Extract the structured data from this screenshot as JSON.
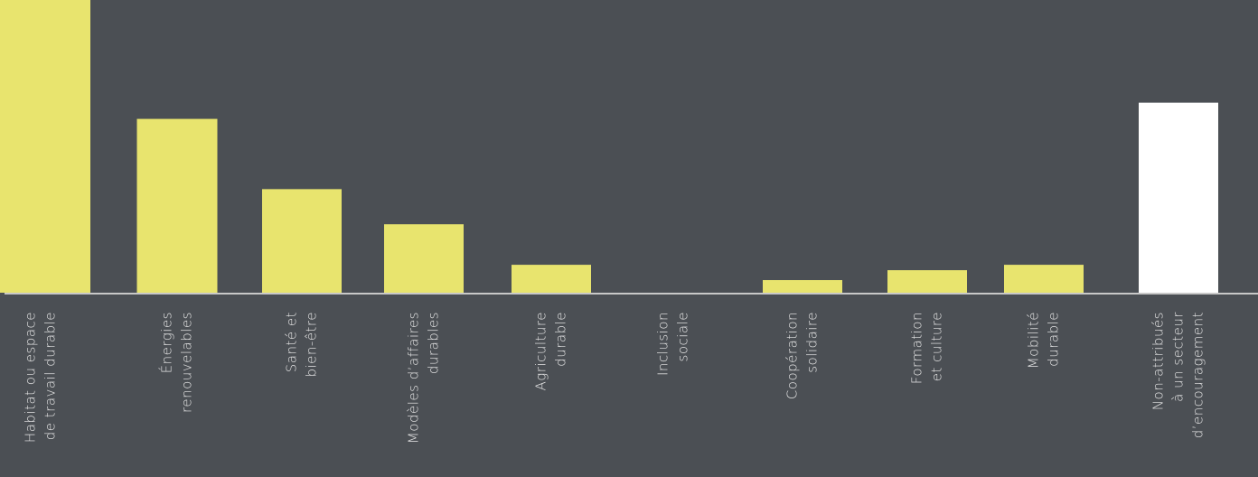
{
  "chart_data": {
    "type": "bar",
    "categories": [
      [
        "Habitat ou espace",
        "de travail durable"
      ],
      [
        "Énergies",
        "renouvelables"
      ],
      [
        "Santé et",
        "bien-être"
      ],
      [
        "Modèles d’affaires",
        "durables"
      ],
      [
        "Agriculture",
        "durable"
      ],
      [
        "Inclusion",
        "sociale"
      ],
      [
        "Coopération",
        "solidaire"
      ],
      [
        "Formation",
        "et culture"
      ],
      [
        "Mobilité",
        "durable"
      ],
      [
        "Non-attribués",
        "à un secteur",
        "d’encouragement"
      ]
    ],
    "values": [
      325,
      193,
      115,
      76,
      31,
      0,
      14,
      25,
      31,
      211
    ],
    "colors": [
      "#e8e46e",
      "#e8e46e",
      "#e8e46e",
      "#e8e46e",
      "#e8e46e",
      "#e8e46e",
      "#e8e46e",
      "#e8e46e",
      "#e8e46e",
      "#ffffff"
    ],
    "ylim": [
      0,
      325
    ]
  }
}
